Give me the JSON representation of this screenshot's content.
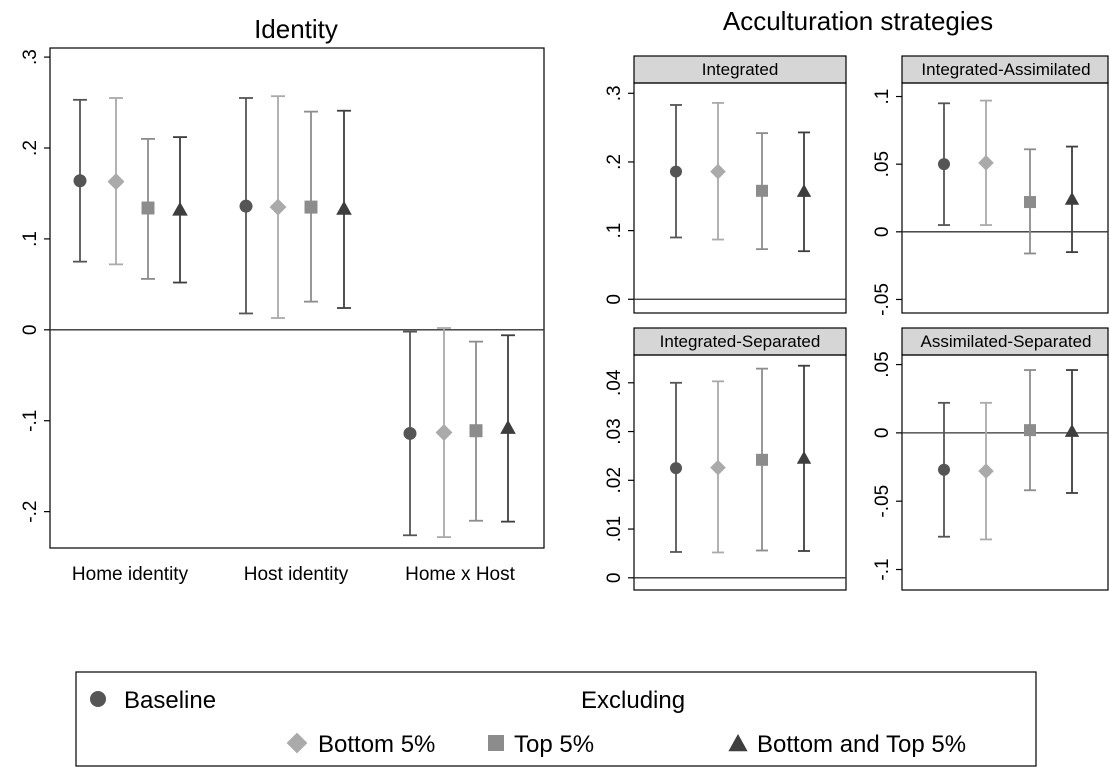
{
  "colors": {
    "Baseline": "#555555",
    "Bottom 5%": "#aaaaaa",
    "Top 5%": "#8c8c8c",
    "Bottom and Top 5%": "#3e3e3e",
    "strip_fill": "#d6d6d6"
  },
  "chart_data": [
    {
      "id": "identity",
      "type": "scatter",
      "title": "Identity",
      "categories": [
        "Home identity",
        "Host identity",
        "Home x Host"
      ],
      "ylim": [
        -0.24,
        0.31
      ],
      "yticks": [
        -0.2,
        -0.1,
        0,
        0.1,
        0.2,
        0.3
      ],
      "ytick_labels": [
        "-.2",
        "-.1",
        "0",
        ".1",
        ".2",
        ".3"
      ],
      "zero_line": true,
      "series": [
        {
          "name": "Baseline",
          "marker": "circle",
          "values": [
            0.164,
            0.136,
            -0.114
          ],
          "lower": [
            0.075,
            0.018,
            -0.226
          ],
          "upper": [
            0.253,
            0.255,
            -0.002
          ]
        },
        {
          "name": "Bottom 5%",
          "marker": "diamond",
          "values": [
            0.163,
            0.135,
            -0.113
          ],
          "lower": [
            0.072,
            0.013,
            -0.228
          ],
          "upper": [
            0.255,
            0.257,
            0.002
          ]
        },
        {
          "name": "Top 5%",
          "marker": "square",
          "values": [
            0.134,
            0.135,
            -0.111
          ],
          "lower": [
            0.056,
            0.031,
            -0.21
          ],
          "upper": [
            0.21,
            0.24,
            -0.013
          ]
        },
        {
          "name": "Bottom and Top 5%",
          "marker": "triangle",
          "values": [
            0.132,
            0.133,
            -0.108
          ],
          "lower": [
            0.052,
            0.024,
            -0.211
          ],
          "upper": [
            0.212,
            0.241,
            -0.006
          ]
        }
      ]
    },
    {
      "id": "integrated",
      "type": "scatter",
      "title": "Integrated",
      "ylim": [
        -0.02,
        0.315
      ],
      "yticks": [
        0,
        0.1,
        0.2,
        0.3
      ],
      "ytick_labels": [
        "0",
        ".1",
        ".2",
        ".3"
      ],
      "zero_line": true,
      "series": [
        {
          "name": "Baseline",
          "marker": "circle",
          "values": [
            0.186
          ],
          "lower": [
            0.09
          ],
          "upper": [
            0.283
          ]
        },
        {
          "name": "Bottom 5%",
          "marker": "diamond",
          "values": [
            0.186
          ],
          "lower": [
            0.087
          ],
          "upper": [
            0.286
          ]
        },
        {
          "name": "Top 5%",
          "marker": "square",
          "values": [
            0.158
          ],
          "lower": [
            0.073
          ],
          "upper": [
            0.242
          ]
        },
        {
          "name": "Bottom and Top 5%",
          "marker": "triangle",
          "values": [
            0.157
          ],
          "lower": [
            0.07
          ],
          "upper": [
            0.243
          ]
        }
      ]
    },
    {
      "id": "integrated-assimilated",
      "type": "scatter",
      "title": "Integrated-Assimilated",
      "ylim": [
        -0.06,
        0.11
      ],
      "yticks": [
        -0.05,
        0,
        0.05,
        0.1
      ],
      "ytick_labels": [
        "-.05",
        "0",
        ".05",
        ".1"
      ],
      "zero_line": true,
      "series": [
        {
          "name": "Baseline",
          "marker": "circle",
          "values": [
            0.05
          ],
          "lower": [
            0.005
          ],
          "upper": [
            0.095
          ]
        },
        {
          "name": "Bottom 5%",
          "marker": "diamond",
          "values": [
            0.051
          ],
          "lower": [
            0.005
          ],
          "upper": [
            0.097
          ]
        },
        {
          "name": "Top 5%",
          "marker": "square",
          "values": [
            0.022
          ],
          "lower": [
            -0.016
          ],
          "upper": [
            0.061
          ]
        },
        {
          "name": "Bottom and Top 5%",
          "marker": "triangle",
          "values": [
            0.024
          ],
          "lower": [
            -0.015
          ],
          "upper": [
            0.063
          ]
        }
      ]
    },
    {
      "id": "integrated-separated",
      "type": "scatter",
      "title": "Integrated-Separated",
      "ylim": [
        -0.0025,
        0.0457
      ],
      "yticks": [
        0,
        0.01,
        0.02,
        0.03,
        0.04
      ],
      "ytick_labels": [
        "0",
        ".01",
        ".02",
        ".03",
        ".04"
      ],
      "zero_line": true,
      "series": [
        {
          "name": "Baseline",
          "marker": "circle",
          "values": [
            0.0225
          ],
          "lower": [
            0.0053
          ],
          "upper": [
            0.04
          ]
        },
        {
          "name": "Bottom 5%",
          "marker": "diamond",
          "values": [
            0.0226
          ],
          "lower": [
            0.0052
          ],
          "upper": [
            0.0403
          ]
        },
        {
          "name": "Top 5%",
          "marker": "square",
          "values": [
            0.0242
          ],
          "lower": [
            0.0056
          ],
          "upper": [
            0.0429
          ]
        },
        {
          "name": "Bottom and Top 5%",
          "marker": "triangle",
          "values": [
            0.0245
          ],
          "lower": [
            0.0055
          ],
          "upper": [
            0.0435
          ]
        }
      ]
    },
    {
      "id": "assimilated-separated",
      "type": "scatter",
      "title": "Assimilated-Separated",
      "ylim": [
        -0.115,
        0.057
      ],
      "yticks": [
        -0.1,
        -0.05,
        0,
        0.05
      ],
      "ytick_labels": [
        "-.1",
        "-.05",
        "0",
        ".05"
      ],
      "zero_line": true,
      "series": [
        {
          "name": "Baseline",
          "marker": "circle",
          "values": [
            -0.027
          ],
          "lower": [
            -0.076
          ],
          "upper": [
            0.022
          ]
        },
        {
          "name": "Bottom 5%",
          "marker": "diamond",
          "values": [
            -0.028
          ],
          "lower": [
            -0.078
          ],
          "upper": [
            0.022
          ]
        },
        {
          "name": "Top 5%",
          "marker": "square",
          "values": [
            0.002
          ],
          "lower": [
            -0.042
          ],
          "upper": [
            0.046
          ]
        },
        {
          "name": "Bottom and Top 5%",
          "marker": "triangle",
          "values": [
            0.001
          ],
          "lower": [
            -0.044
          ],
          "upper": [
            0.046
          ]
        }
      ]
    }
  ],
  "section_title": "Acculturation strategies",
  "legend": {
    "baseline": "Baseline",
    "group_label": "Excluding",
    "items": [
      "Bottom 5%",
      "Top 5%",
      "Bottom and Top 5%"
    ]
  }
}
